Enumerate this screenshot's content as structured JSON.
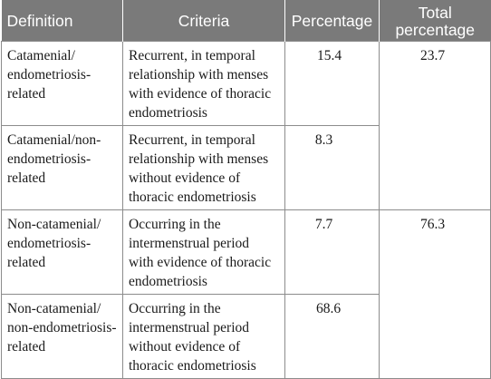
{
  "headers": {
    "definition": "Definition",
    "criteria": "Criteria",
    "percentage": "Percentage",
    "total_line1": "Total",
    "total_line2": "percentage"
  },
  "rows": [
    {
      "definition_lines": [
        "Catamenial/",
        "endometriosis-",
        "related"
      ],
      "criteria_lines": [
        "Recurrent, in temporal",
        "relationship with menses",
        "with evidence of thoracic",
        "endometriosis"
      ],
      "percentage": "15.4"
    },
    {
      "definition_lines": [
        "Catamenial/non-",
        "endometriosis-",
        "related"
      ],
      "criteria_lines": [
        "Recurrent, in temporal",
        "relationship with menses",
        "without evidence of",
        "thoracic endometriosis"
      ],
      "percentage": "8.3"
    },
    {
      "definition_lines": [
        "Non-catamenial/",
        "endometriosis-",
        "related"
      ],
      "criteria_lines": [
        "Occurring in the",
        "intermenstrual period",
        "with evidence of thoracic",
        "endometriosis"
      ],
      "percentage": "7.7"
    },
    {
      "definition_lines": [
        "Non-catamenial/",
        "non-endometriosis-",
        "related"
      ],
      "criteria_lines": [
        "Occurring in the",
        "intermenstrual period",
        "without evidence of",
        "thoracic endometriosis"
      ],
      "percentage": "68.6"
    }
  ],
  "totals": [
    "23.7",
    "76.3"
  ]
}
